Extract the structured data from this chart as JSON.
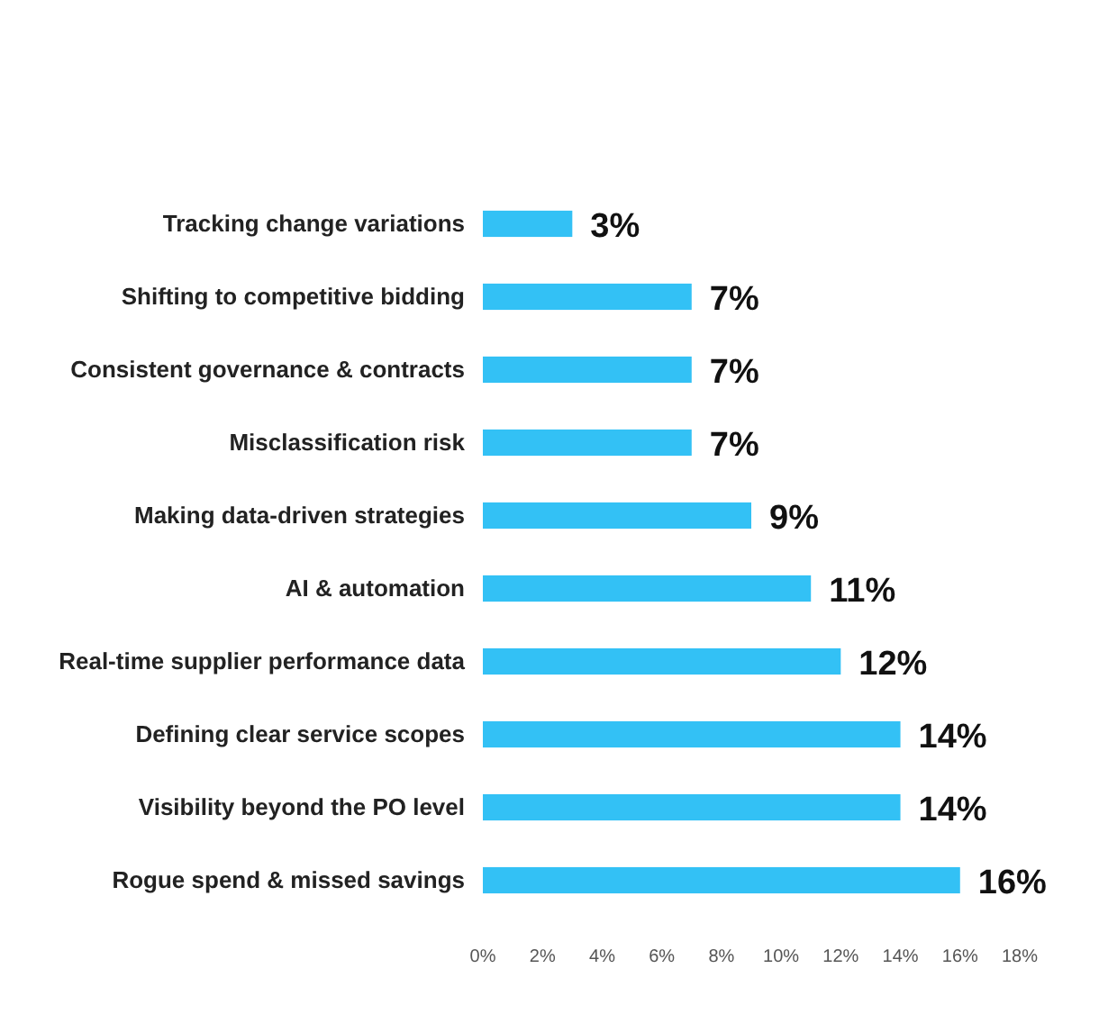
{
  "chart_data": {
    "type": "bar",
    "orientation": "horizontal",
    "categories": [
      "Tracking change variations",
      "Shifting to competitive bidding",
      "Consistent governance & contracts",
      "Misclassification risk",
      "Making data-driven strategies",
      "AI & automation",
      "Real-time supplier performance data",
      "Defining clear service scopes",
      "Visibility beyond the PO level",
      "Rogue spend & missed savings"
    ],
    "values": [
      3,
      7,
      7,
      7,
      9,
      11,
      12,
      14,
      14,
      16
    ],
    "value_labels": [
      "3%",
      "7%",
      "7%",
      "7%",
      "9%",
      "11%",
      "12%",
      "14%",
      "14%",
      "16%"
    ],
    "color": "#33c1f5",
    "xlim": [
      0,
      18
    ],
    "xticks": [
      {
        "value": 0,
        "label": "0%"
      },
      {
        "value": 2,
        "label": "2%"
      },
      {
        "value": 4,
        "label": "4%"
      },
      {
        "value": 6,
        "label": "6%"
      },
      {
        "value": 8,
        "label": "8%"
      },
      {
        "value": 10,
        "label": "10%"
      },
      {
        "value": 12,
        "label": "12%"
      },
      {
        "value": 14,
        "label": "14%"
      },
      {
        "value": 16,
        "label": "16%"
      },
      {
        "value": 18,
        "label": "18%"
      }
    ],
    "grid": false
  }
}
